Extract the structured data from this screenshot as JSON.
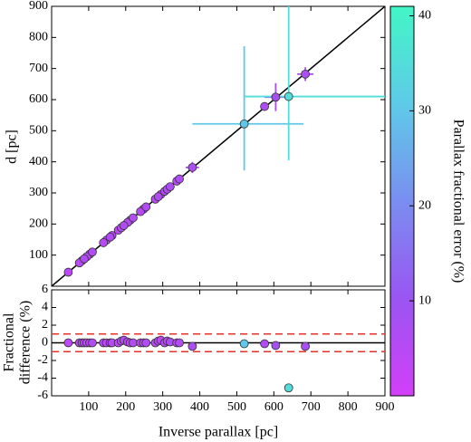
{
  "chart_data": [
    {
      "type": "scatter",
      "xlabel": "Inverse parallax [pc]",
      "ylabel": "d [pc]",
      "xlim": [
        0,
        900
      ],
      "ylim": [
        0,
        900
      ],
      "xticks": [
        100,
        200,
        300,
        400,
        500,
        600,
        700,
        800,
        900
      ],
      "yticks": [
        100,
        200,
        300,
        400,
        500,
        600,
        700,
        800,
        900
      ],
      "x": [
        45,
        75,
        82,
        88,
        95,
        103,
        110,
        140,
        148,
        158,
        163,
        180,
        188,
        195,
        205,
        212,
        220,
        240,
        248,
        255,
        280,
        288,
        295,
        305,
        312,
        320,
        338,
        345,
        380,
        520,
        575,
        605,
        640,
        685
      ],
      "values": [
        45,
        75,
        82,
        88,
        95,
        103,
        110,
        140,
        148,
        158,
        163,
        180,
        188,
        195,
        205,
        212,
        220,
        240,
        248,
        255,
        280,
        288,
        295,
        305,
        312,
        320,
        338,
        345,
        382,
        522,
        578,
        608,
        610,
        682
      ],
      "c": [
        4,
        5,
        4,
        6,
        5,
        4,
        6,
        5,
        4,
        6,
        5,
        4,
        5,
        6,
        5,
        4,
        6,
        5,
        4,
        6,
        5,
        6,
        4,
        5,
        6,
        7,
        5,
        6,
        7,
        30,
        6,
        8,
        35,
        7
      ],
      "xerr": [
        null,
        null,
        null,
        null,
        null,
        null,
        null,
        null,
        null,
        null,
        null,
        null,
        null,
        null,
        null,
        null,
        null,
        null,
        null,
        null,
        null,
        null,
        null,
        null,
        null,
        [
          12,
          12
        ],
        null,
        null,
        [
          18,
          18
        ],
        [
          140,
          160
        ],
        null,
        [
          30,
          30
        ],
        [
          120,
          330
        ],
        [
          22,
          22
        ]
      ],
      "yerr": [
        null,
        null,
        null,
        null,
        null,
        null,
        null,
        null,
        null,
        null,
        null,
        null,
        null,
        null,
        null,
        null,
        null,
        null,
        null,
        null,
        null,
        null,
        null,
        null,
        null,
        [
          12,
          12
        ],
        null,
        null,
        [
          18,
          18
        ],
        [
          150,
          250
        ],
        null,
        [
          45,
          45
        ],
        [
          205,
          330
        ],
        [
          22,
          22
        ]
      ],
      "colorbar": {
        "label": "Parallax fractional error (%)",
        "lim": [
          0,
          41
        ],
        "ticks": [
          10,
          20,
          30,
          40
        ],
        "colors": [
          "#d23ff8",
          "#9a55f2",
          "#7a8ef0",
          "#5ecbe8",
          "#42f6c6"
        ]
      }
    },
    {
      "type": "residual",
      "ylabel": [
        "Fractional",
        "difference (%)"
      ],
      "ylim": [
        -6,
        6
      ],
      "yticks": [
        -6,
        -4,
        -2,
        0,
        2,
        4,
        6
      ],
      "values": [
        0,
        0,
        0,
        0,
        0,
        0,
        0,
        0,
        0,
        0,
        0,
        0,
        0.2,
        0.3,
        0.1,
        0,
        0,
        0,
        0,
        0,
        0,
        0.2,
        0.3,
        0,
        0.2,
        0.1,
        0,
        0,
        -0.4,
        -0.1,
        -0.1,
        -0.3,
        -5.1,
        -0.4
      ],
      "ref_lines": [
        0
      ],
      "dashed_lines": [
        -1,
        1
      ]
    }
  ]
}
